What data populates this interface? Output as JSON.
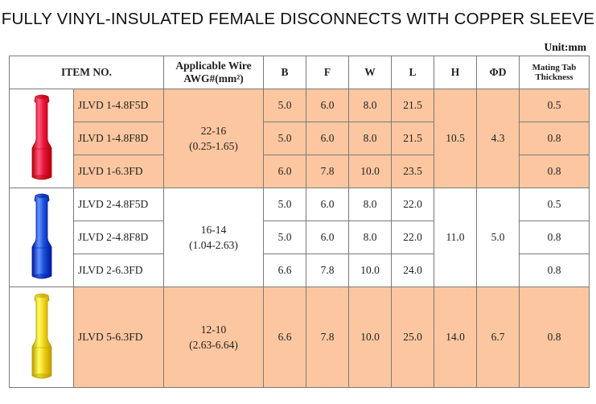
{
  "title": "FULLY VINYL-INSULATED FEMALE DISCONNECTS WITH COPPER SLEEVE",
  "unit": "Unit:mm",
  "headers": {
    "item": "ITEM NO.",
    "wire_line1": "Applicable Wire",
    "wire_line2": "AWG#(mm²)",
    "b": "B",
    "f": "F",
    "w": "W",
    "l": "L",
    "h": "H",
    "d": "ΦD",
    "tab_line1": "Mating Tab",
    "tab_line2": "Thickness"
  },
  "groups": [
    {
      "color": "#e8133b",
      "wire_awg": "22-16",
      "wire_mm2": "(0.25-1.65)",
      "h": "10.5",
      "d": "4.3",
      "rows": [
        {
          "item": "JLVD 1-4.8F5D",
          "b": "5.0",
          "f": "6.0",
          "w": "8.0",
          "l": "21.5",
          "tab": "0.5"
        },
        {
          "item": "JLVD 1-4.8F8D",
          "b": "5.0",
          "f": "6.0",
          "w": "8.0",
          "l": "21.5",
          "tab": "0.8"
        },
        {
          "item": "JLVD 1-6.3FD",
          "b": "6.0",
          "f": "7.8",
          "w": "10.0",
          "l": "23.5",
          "tab": "0.8"
        }
      ]
    },
    {
      "color": "#1b4fd8",
      "wire_awg": "16-14",
      "wire_mm2": "(1.04-2.63)",
      "h": "11.0",
      "d": "5.0",
      "rows": [
        {
          "item": "JLVD 2-4.8F5D",
          "b": "5.0",
          "f": "6.0",
          "w": "8.0",
          "l": "22.0",
          "tab": "0.5"
        },
        {
          "item": "JLVD 2-4.8F8D",
          "b": "5.0",
          "f": "6.0",
          "w": "8.0",
          "l": "22.0",
          "tab": "0.8"
        },
        {
          "item": "JLVD 2-6.3FD",
          "b": "6.6",
          "f": "7.8",
          "w": "10.0",
          "l": "24.0",
          "tab": "0.8"
        }
      ]
    },
    {
      "color": "#f2d21a",
      "wire_awg": "12-10",
      "wire_mm2": "(2.63-6.64)",
      "h": "14.0",
      "d": "6.7",
      "rows": [
        {
          "item": "JLVD 5-6.3FD",
          "b": "6.6",
          "f": "7.8",
          "w": "10.0",
          "l": "25.0",
          "tab": "0.8"
        }
      ]
    }
  ]
}
